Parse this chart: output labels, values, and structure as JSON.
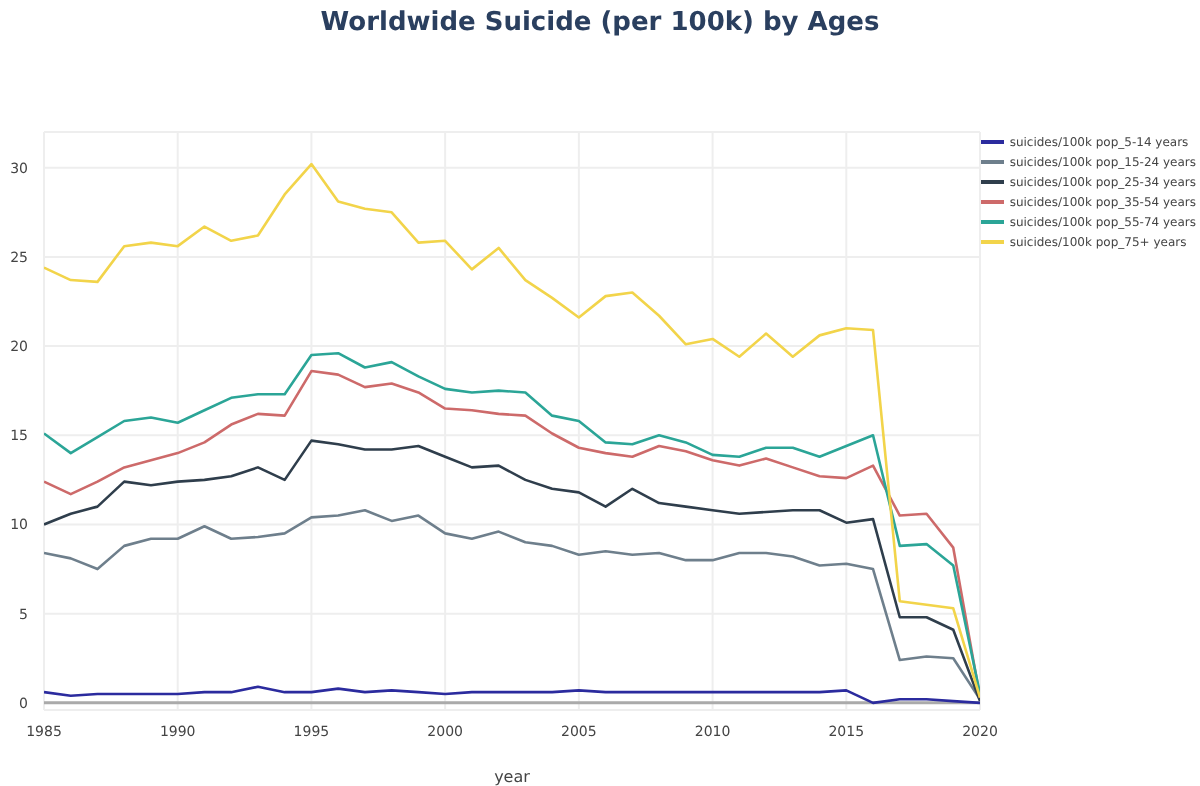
{
  "chart_data": {
    "type": "line",
    "title": "Worldwide Suicide (per 100k) by Ages",
    "xlabel": "year",
    "x": [
      1985,
      1986,
      1987,
      1988,
      1989,
      1990,
      1991,
      1992,
      1993,
      1994,
      1995,
      1996,
      1997,
      1998,
      1999,
      2000,
      2001,
      2002,
      2003,
      2004,
      2005,
      2006,
      2007,
      2008,
      2009,
      2010,
      2011,
      2012,
      2013,
      2014,
      2015,
      2016,
      2017,
      2018,
      2019,
      2020
    ],
    "series": [
      {
        "name": "suicides/100k pop_5-14 years",
        "color": "#2b2b9e",
        "values": [
          0.6,
          0.4,
          0.5,
          0.5,
          0.5,
          0.5,
          0.6,
          0.6,
          0.9,
          0.6,
          0.6,
          0.8,
          0.6,
          0.7,
          0.6,
          0.5,
          0.6,
          0.6,
          0.6,
          0.6,
          0.7,
          0.6,
          0.6,
          0.6,
          0.6,
          0.6,
          0.6,
          0.6,
          0.6,
          0.6,
          0.7,
          0.0,
          0.2,
          0.2,
          0.1,
          0.0
        ]
      },
      {
        "name": "suicides/100k pop_15-24 years",
        "color": "#6e7f8c",
        "values": [
          8.4,
          8.1,
          7.5,
          8.8,
          9.2,
          9.2,
          9.9,
          9.2,
          9.3,
          9.5,
          10.4,
          10.5,
          10.8,
          10.2,
          10.5,
          9.5,
          9.2,
          9.6,
          9.0,
          8.8,
          8.3,
          8.5,
          8.3,
          8.4,
          8.0,
          8.0,
          8.4,
          8.4,
          8.2,
          7.7,
          7.8,
          7.5,
          2.4,
          2.6,
          2.5,
          0.2
        ]
      },
      {
        "name": "suicides/100k pop_25-34 years",
        "color": "#2f3e4c",
        "values": [
          10.0,
          10.6,
          11.0,
          12.4,
          12.2,
          12.4,
          12.5,
          12.7,
          13.2,
          12.5,
          14.7,
          14.5,
          14.2,
          14.2,
          14.4,
          13.8,
          13.2,
          13.3,
          12.5,
          12.0,
          11.8,
          11.0,
          12.0,
          11.2,
          11.0,
          10.8,
          10.6,
          10.7,
          10.8,
          10.8,
          10.1,
          10.3,
          4.8,
          4.8,
          4.1,
          0.1
        ]
      },
      {
        "name": "suicides/100k pop_35-54 years",
        "color": "#cd6a6a",
        "values": [
          12.4,
          11.7,
          12.4,
          13.2,
          13.6,
          14.0,
          14.6,
          15.6,
          16.2,
          16.1,
          18.6,
          18.4,
          17.7,
          17.9,
          17.4,
          16.5,
          16.4,
          16.2,
          16.1,
          15.1,
          14.3,
          14.0,
          13.8,
          14.4,
          14.1,
          13.6,
          13.3,
          13.7,
          13.2,
          12.7,
          12.6,
          13.3,
          10.5,
          10.6,
          8.7,
          0.3
        ]
      },
      {
        "name": "suicides/100k pop_55-74 years",
        "color": "#2ba597",
        "values": [
          15.1,
          14.0,
          14.9,
          15.8,
          16.0,
          15.7,
          16.4,
          17.1,
          17.3,
          17.3,
          19.5,
          19.6,
          18.8,
          19.1,
          18.3,
          17.6,
          17.4,
          17.5,
          17.4,
          16.1,
          15.8,
          14.6,
          14.5,
          15.0,
          14.6,
          13.9,
          13.8,
          14.3,
          14.3,
          13.8,
          14.4,
          15.0,
          8.8,
          8.9,
          7.7,
          0.5
        ]
      },
      {
        "name": "suicides/100k pop_75+ years",
        "color": "#f2d44a",
        "values": [
          24.4,
          23.7,
          23.6,
          25.6,
          25.8,
          25.6,
          26.7,
          25.9,
          26.2,
          28.5,
          30.2,
          28.1,
          27.7,
          27.5,
          25.8,
          25.9,
          24.3,
          25.5,
          23.7,
          22.7,
          21.6,
          22.8,
          23.0,
          21.7,
          20.1,
          20.4,
          19.4,
          20.7,
          19.4,
          20.6,
          21.0,
          20.9,
          5.7,
          5.5,
          5.3,
          0.3
        ]
      }
    ],
    "xlim": [
      1985,
      2020
    ],
    "xticks": [
      1985,
      1990,
      1995,
      2000,
      2005,
      2010,
      2015,
      2020
    ],
    "ylim": [
      -0.4,
      32
    ],
    "yticks": [
      0,
      5,
      10,
      15,
      20,
      25,
      30
    ],
    "grid": true,
    "legend": "top right",
    "marker": "none",
    "line_style": "solid"
  }
}
